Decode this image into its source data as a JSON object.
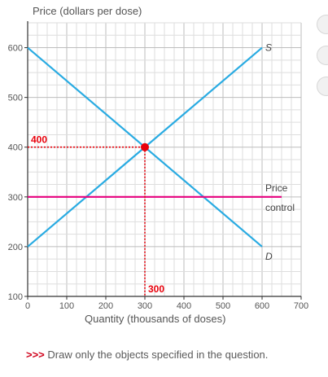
{
  "chart_data": {
    "type": "line",
    "ylabel": "Price (dollars per dose)",
    "xlabel": "Quantity (thousands of doses)",
    "xlim": [
      0,
      700
    ],
    "ylim": [
      100,
      650
    ],
    "x_ticks": [
      0,
      100,
      200,
      300,
      400,
      500,
      600,
      700
    ],
    "y_ticks": [
      100,
      200,
      300,
      400,
      500,
      600
    ],
    "grid": true,
    "series": [
      {
        "name": "S",
        "color": "#29abe2",
        "points": [
          [
            0,
            200
          ],
          [
            600,
            600
          ]
        ]
      },
      {
        "name": "D",
        "color": "#29abe2",
        "points": [
          [
            0,
            600
          ],
          [
            600,
            200
          ]
        ]
      },
      {
        "name": "Price control",
        "color": "#e6007e",
        "points": [
          [
            0,
            300
          ],
          [
            650,
            300
          ]
        ]
      }
    ],
    "equilibrium": {
      "x": 300,
      "y": 400,
      "color": "#e8000b"
    },
    "annotations": [
      {
        "text": "400",
        "color": "#e8000b"
      },
      {
        "text": "300",
        "color": "#e8000b"
      }
    ],
    "price_control_label": [
      "Price",
      "control"
    ]
  },
  "instruction": {
    "prompt": ">>>",
    "text": "Draw only the objects specified in the question."
  }
}
